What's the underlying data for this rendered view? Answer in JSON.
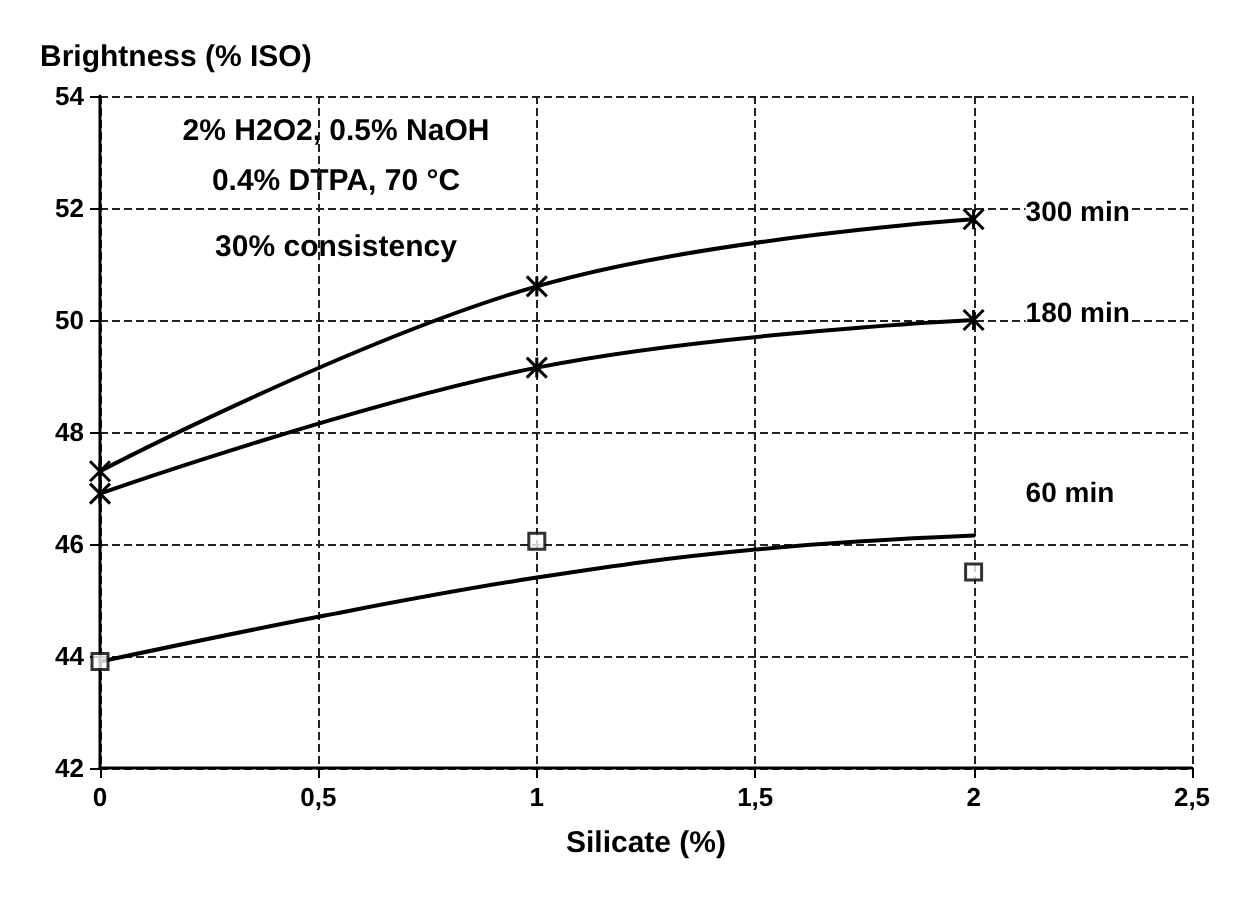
{
  "chart_data": {
    "type": "line",
    "ylabel": "Brightness (% ISO)",
    "xlabel": "Silicate (%)",
    "annotations": [
      "2% H2O2, 0.5% NaOH",
      "0.4% DTPA, 70 °C",
      "30% consistency"
    ],
    "xlim": [
      0,
      2.5
    ],
    "xticks": [
      0,
      {
        "value": 0.5,
        "label": "0,5"
      },
      1,
      {
        "value": 1.5,
        "label": "1,5"
      },
      2,
      {
        "value": 2.5,
        "label": "2,5"
      }
    ],
    "ylim": [
      42,
      54
    ],
    "yticks": [
      42,
      44,
      46,
      48,
      50,
      52,
      54
    ],
    "grid": true,
    "legend": false,
    "series": [
      {
        "name": "300 min",
        "type": "line",
        "color": "#000000",
        "marker": "cross",
        "x": [
          0,
          1,
          2
        ],
        "values": [
          47.3,
          50.6,
          51.8
        ]
      },
      {
        "name": "180 min",
        "type": "line",
        "color": "#000000",
        "marker": "cross",
        "x": [
          0,
          1,
          2
        ],
        "values": [
          46.9,
          49.15,
          50.0
        ]
      },
      {
        "name": "60 min",
        "type": "line",
        "color": "#000000",
        "marker": "none",
        "x": [
          0,
          0.5,
          1,
          1.5,
          2
        ],
        "values": [
          43.9,
          44.7,
          45.4,
          45.9,
          46.15
        ]
      },
      {
        "type": "scatter",
        "color": "#000000",
        "marker": "square",
        "x": [
          0,
          1,
          2
        ],
        "values": [
          43.9,
          46.05,
          45.5
        ]
      }
    ]
  }
}
